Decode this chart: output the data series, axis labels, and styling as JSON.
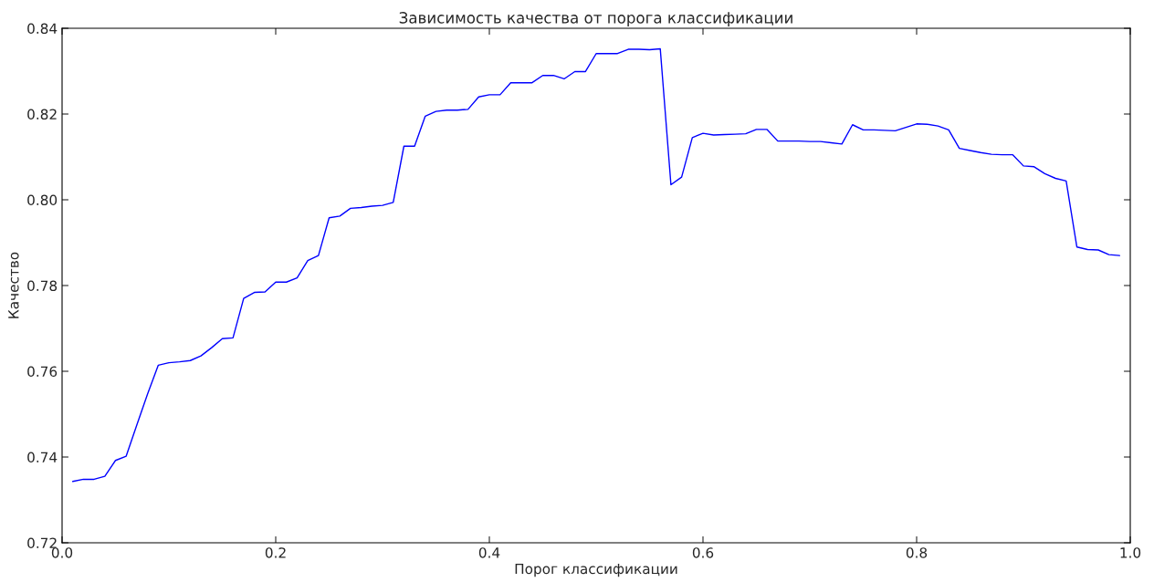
{
  "chart_data": {
    "type": "line",
    "title": "Зависимость качества от порога классификации",
    "xlabel": "Порог классификации",
    "ylabel": "Качество",
    "x": [
      0.01,
      0.02,
      0.03,
      0.04,
      0.05,
      0.06,
      0.07,
      0.08,
      0.09,
      0.1,
      0.11,
      0.12,
      0.13,
      0.14,
      0.15,
      0.16,
      0.17,
      0.18,
      0.19,
      0.2,
      0.21,
      0.22,
      0.23,
      0.24,
      0.25,
      0.26,
      0.27,
      0.28,
      0.29,
      0.3,
      0.31,
      0.32,
      0.33,
      0.34,
      0.35,
      0.36,
      0.37,
      0.38,
      0.39,
      0.4,
      0.41,
      0.42,
      0.43,
      0.44,
      0.45,
      0.46,
      0.47,
      0.48,
      0.49,
      0.5,
      0.51,
      0.52,
      0.53,
      0.54,
      0.55,
      0.56,
      0.57,
      0.58,
      0.59,
      0.6,
      0.61,
      0.62,
      0.63,
      0.64,
      0.65,
      0.66,
      0.67,
      0.68,
      0.69,
      0.7,
      0.71,
      0.72,
      0.73,
      0.74,
      0.75,
      0.76,
      0.77,
      0.78,
      0.79,
      0.8,
      0.81,
      0.82,
      0.83,
      0.84,
      0.85,
      0.86,
      0.87,
      0.88,
      0.89,
      0.9,
      0.91,
      0.92,
      0.93,
      0.94,
      0.95,
      0.96,
      0.97,
      0.98,
      0.99
    ],
    "series": [
      {
        "color": "#0000ff",
        "values": [
          0.7343,
          0.7348,
          0.7348,
          0.7355,
          0.7392,
          0.7402,
          0.7475,
          0.7547,
          0.7614,
          0.762,
          0.7622,
          0.7625,
          0.7636,
          0.7655,
          0.7676,
          0.7678,
          0.777,
          0.7784,
          0.7785,
          0.7808,
          0.7808,
          0.7818,
          0.7858,
          0.787,
          0.7958,
          0.7962,
          0.798,
          0.7982,
          0.7985,
          0.7987,
          0.7994,
          0.8125,
          0.8125,
          0.8195,
          0.8206,
          0.8209,
          0.8209,
          0.8211,
          0.824,
          0.8245,
          0.8245,
          0.8273,
          0.8273,
          0.8273,
          0.829,
          0.829,
          0.8282,
          0.8299,
          0.8299,
          0.8341,
          0.8341,
          0.8341,
          0.8351,
          0.8351,
          0.835,
          0.8352,
          0.8035,
          0.8053,
          0.8145,
          0.8155,
          0.8151,
          0.8152,
          0.8153,
          0.8154,
          0.8164,
          0.8164,
          0.8137,
          0.8137,
          0.8137,
          0.8136,
          0.8136,
          0.8133,
          0.813,
          0.8175,
          0.8163,
          0.8163,
          0.8162,
          0.8161,
          0.8169,
          0.8177,
          0.8176,
          0.8172,
          0.8163,
          0.812,
          0.8115,
          0.811,
          0.8106,
          0.8105,
          0.8105,
          0.8079,
          0.8077,
          0.8061,
          0.805,
          0.8044,
          0.789,
          0.7884,
          0.7883,
          0.7872,
          0.787
        ]
      }
    ],
    "xlim": [
      0,
      1
    ],
    "ylim": [
      0.72,
      0.84
    ],
    "xticks": [
      {
        "value": 0,
        "label": "0.0"
      },
      0.2,
      0.4,
      0.6,
      0.8,
      {
        "value": 1,
        "label": "1.0"
      }
    ],
    "yticks": [
      0.72,
      0.74,
      0.76,
      0.78,
      {
        "value": 0.8,
        "label": "0.80"
      },
      0.82,
      0.84
    ],
    "grid": false,
    "marker": "none",
    "line_style": "solid"
  }
}
